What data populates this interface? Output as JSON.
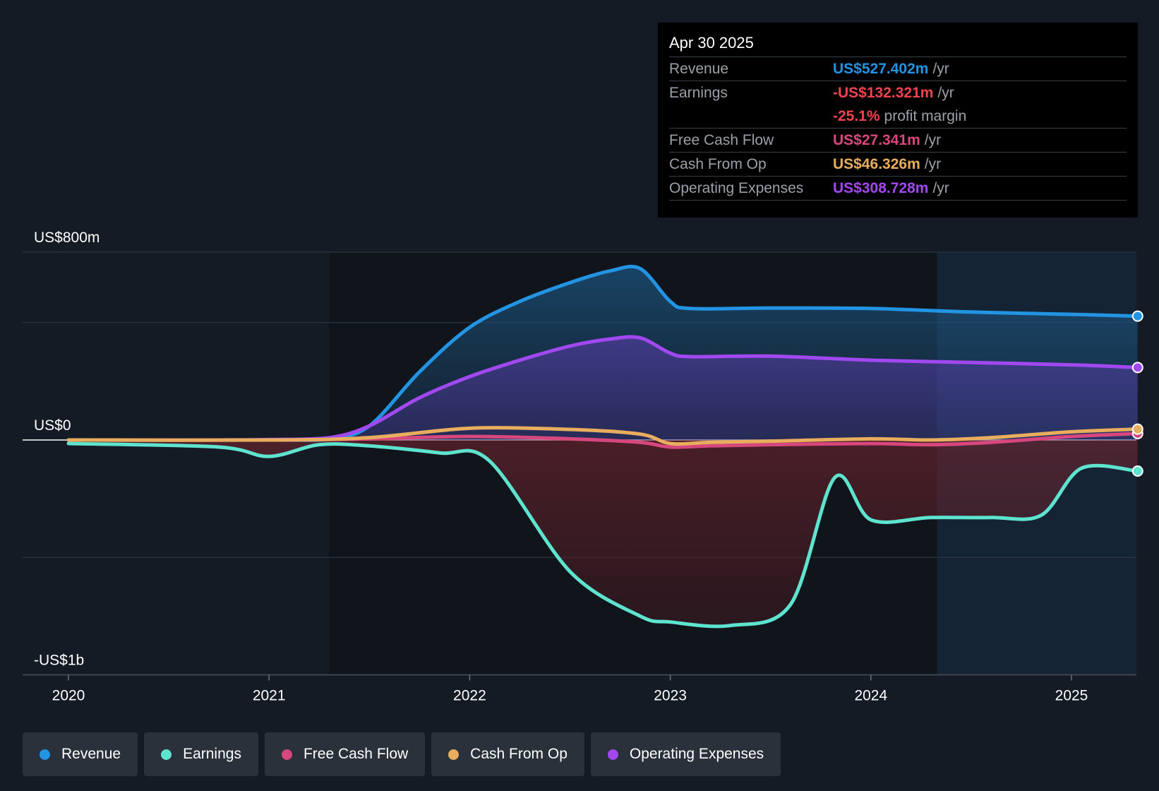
{
  "colors": {
    "revenue": "#2394e3",
    "earnings": "#5ee3cf",
    "fcf": "#d6487d",
    "cfo": "#e9ad5e",
    "opex": "#a148f0",
    "background": "#151b24"
  },
  "tooltip": {
    "date": "Apr 30 2025",
    "rows": [
      {
        "label": "Revenue",
        "value": "US$527.402m",
        "unit": "/yr"
      },
      {
        "label": "Earnings",
        "value": "-US$132.321m",
        "unit": "/yr"
      },
      {
        "label": "",
        "value": "-25.1%",
        "unit": "profit margin"
      },
      {
        "label": "Free Cash Flow",
        "value": "US$27.341m",
        "unit": "/yr"
      },
      {
        "label": "Cash From Op",
        "value": "US$46.326m",
        "unit": "/yr"
      },
      {
        "label": "Operating Expenses",
        "value": "US$308.728m",
        "unit": "/yr"
      }
    ]
  },
  "legend": {
    "items": [
      "Revenue",
      "Earnings",
      "Free Cash Flow",
      "Cash From Op",
      "Operating Expenses"
    ]
  },
  "chart_data": {
    "type": "area",
    "title": "",
    "ylim": [
      -1000,
      800
    ],
    "xlim": [
      2019.77,
      2025.33
    ],
    "y_tick_labels": [
      {
        "value": 800,
        "label": "US$800m"
      },
      {
        "value": 0,
        "label": "US$0"
      },
      {
        "value": -1000,
        "label": "-US$1b"
      }
    ],
    "gridlines": [
      800,
      500,
      0,
      -500
    ],
    "x_tick_labels": [
      {
        "value": 2020,
        "label": "2020"
      },
      {
        "value": 2021,
        "label": "2021"
      },
      {
        "value": 2022,
        "label": "2022"
      },
      {
        "value": 2023,
        "label": "2023"
      },
      {
        "value": 2024,
        "label": "2024"
      },
      {
        "value": 2025,
        "label": "2025"
      }
    ],
    "highlight_start": 2024.33,
    "series": [
      {
        "name": "Revenue",
        "key": "revenue",
        "area": true,
        "x": [
          2020,
          2021,
          2021.3,
          2021.5,
          2021.75,
          2022,
          2022.25,
          2022.5,
          2022.7,
          2022.85,
          2023,
          2023.1,
          2023.5,
          2024,
          2024.5,
          2025,
          2025.33
        ],
        "y": [
          0,
          0,
          5,
          60,
          290,
          480,
          590,
          670,
          720,
          730,
          590,
          560,
          562,
          560,
          545,
          535,
          527.4
        ]
      },
      {
        "name": "Operating Expenses",
        "key": "opex",
        "area": true,
        "x": [
          2020.75,
          2021,
          2021.3,
          2021.5,
          2021.75,
          2022,
          2022.25,
          2022.5,
          2022.7,
          2022.85,
          2023,
          2023.1,
          2023.5,
          2024,
          2024.5,
          2025,
          2025.33
        ],
        "y": [
          0,
          2,
          10,
          60,
          180,
          270,
          340,
          400,
          430,
          435,
          370,
          355,
          357,
          340,
          330,
          320,
          308.7
        ]
      },
      {
        "name": "Free Cash Flow",
        "key": "fcf",
        "area": false,
        "x": [
          2020,
          2021,
          2021.5,
          2022,
          2022.5,
          2022.85,
          2023,
          2023.2,
          2023.5,
          2024,
          2024.3,
          2024.6,
          2025,
          2025.33
        ],
        "y": [
          0,
          0,
          5,
          15,
          5,
          -10,
          -30,
          -25,
          -20,
          -15,
          -20,
          -10,
          15,
          27.3
        ]
      },
      {
        "name": "Cash From Op",
        "key": "cfo",
        "area": false,
        "x": [
          2020,
          2021,
          2021.5,
          2022,
          2022.5,
          2022.85,
          2023,
          2023.2,
          2023.5,
          2024,
          2024.3,
          2024.6,
          2025,
          2025.33
        ],
        "y": [
          0,
          0,
          10,
          50,
          45,
          25,
          -15,
          -10,
          -5,
          5,
          0,
          10,
          35,
          46.3
        ]
      },
      {
        "name": "Earnings",
        "key": "earnings",
        "area": true,
        "x": [
          2020,
          2020.75,
          2021,
          2021.25,
          2021.5,
          2021.85,
          2022.1,
          2022.5,
          2022.85,
          2023,
          2023.3,
          2023.6,
          2023.82,
          2024,
          2024.3,
          2024.6,
          2024.85,
          2025.05,
          2025.33
        ],
        "y": [
          -15,
          -30,
          -70,
          -20,
          -25,
          -55,
          -90,
          -560,
          -750,
          -775,
          -790,
          -700,
          -160,
          -340,
          -330,
          -330,
          -320,
          -120,
          -132.3
        ]
      }
    ]
  }
}
